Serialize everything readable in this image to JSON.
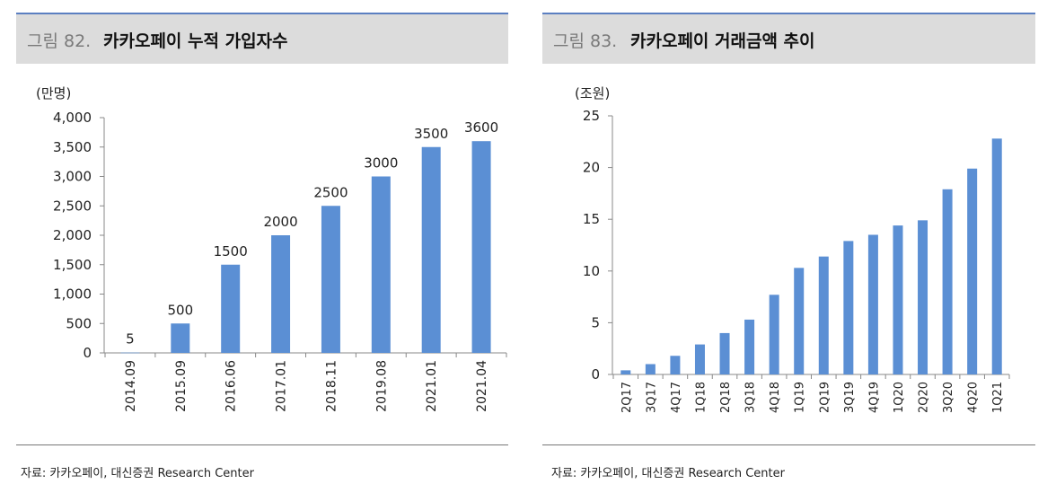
{
  "left_panel": {
    "figure_label": "그림 82.",
    "title": "카카오페이 누적 가입자수",
    "source": "자료: 카카오페이, 대신증권 Research Center"
  },
  "right_panel": {
    "figure_label": "그림 83.",
    "title": "카카오페이 거래금액 추이",
    "source": "자료: 카카오페이, 대신증권 Research Center"
  },
  "chart_data": [
    {
      "type": "bar",
      "title": "카카오페이 누적 가입자수",
      "ylabel": "(만명)",
      "xlabel": "",
      "categories": [
        "2014.09",
        "2015.09",
        "2016.06",
        "2017.01",
        "2018.11",
        "2019.08",
        "2021.01",
        "2021.04"
      ],
      "values": [
        5,
        500,
        1500,
        2000,
        2500,
        3000,
        3500,
        3600
      ],
      "data_labels": [
        "5",
        "500",
        "1500",
        "2000",
        "2500",
        "3000",
        "3500",
        "3600"
      ],
      "y_ticks": [
        "0",
        "500",
        "1,000",
        "1,500",
        "2,000",
        "2,500",
        "3,000",
        "3,500",
        "4,000"
      ],
      "ylim": [
        0,
        4000
      ],
      "bar_color": "#5b8fd4",
      "grid": false
    },
    {
      "type": "bar",
      "title": "카카오페이 거래금액 추이",
      "ylabel": "(조원)",
      "xlabel": "",
      "categories": [
        "2Q17",
        "3Q17",
        "4Q17",
        "1Q18",
        "2Q18",
        "3Q18",
        "4Q18",
        "1Q19",
        "2Q19",
        "3Q19",
        "4Q19",
        "1Q20",
        "2Q20",
        "3Q20",
        "4Q20",
        "1Q21"
      ],
      "values": [
        0.4,
        1.0,
        1.8,
        2.9,
        4.0,
        5.3,
        7.7,
        10.3,
        11.4,
        12.9,
        13.5,
        14.4,
        14.9,
        17.9,
        19.9,
        22.8
      ],
      "y_ticks": [
        "0",
        "5",
        "10",
        "15",
        "20",
        "25"
      ],
      "ylim": [
        0,
        25
      ],
      "bar_color": "#5b8fd4",
      "grid": false
    }
  ]
}
